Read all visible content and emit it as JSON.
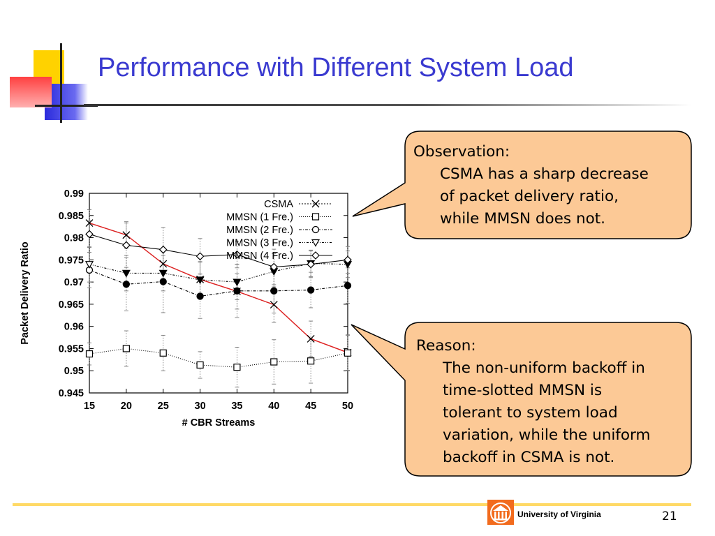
{
  "slide": {
    "title": "Performance with Different System Load",
    "page_number": "21",
    "institution": "University of Virginia"
  },
  "callouts": [
    {
      "heading": "Observation:",
      "lines": [
        "CSMA has a sharp decrease",
        "of packet delivery ratio,",
        "while MMSN does not."
      ]
    },
    {
      "heading": "Reason:",
      "lines": [
        "The non-uniform backoff in",
        "time-slotted MMSN is",
        "tolerant to system load",
        "variation, while the uniform",
        "backoff in CSMA is not."
      ]
    }
  ],
  "colors": {
    "title": "#3a3ad0",
    "callout_fill": "#fcc996",
    "accent_rule": "#ffd966",
    "csma_overlay": "#e02020"
  },
  "chart_data": {
    "type": "line",
    "x": [
      15,
      20,
      25,
      30,
      35,
      40,
      45,
      50
    ],
    "xlabel": "# CBR Streams",
    "ylabel": "Packet Delivery Ratio",
    "xlim": [
      15,
      50
    ],
    "ylim": [
      0.945,
      0.99
    ],
    "xticks": [
      15,
      20,
      25,
      30,
      35,
      40,
      45,
      50
    ],
    "yticks": [
      0.945,
      0.95,
      0.955,
      0.96,
      0.965,
      0.97,
      0.975,
      0.98,
      0.985,
      0.99
    ],
    "ytick_labels": [
      "0.945",
      "0.95",
      "0.955",
      "0.96",
      "0.965",
      "0.97",
      "0.975",
      "0.98",
      "0.985",
      "0.99"
    ],
    "legend_position": "top-right",
    "grid": false,
    "error_bars": true,
    "series": [
      {
        "name": "CSMA",
        "marker": "x",
        "dash": "2,2",
        "values": [
          0.9833,
          0.9806,
          0.9741,
          0.9706,
          0.9679,
          0.9649,
          0.9572,
          0.9541
        ],
        "err": [
          0.003,
          0.003,
          0.0035,
          0.004,
          0.004,
          0.004,
          0.004,
          0.004
        ]
      },
      {
        "name": "MMSN (1 Fre.)",
        "marker": "square",
        "dash": "1,2",
        "values": [
          0.9538,
          0.955,
          0.954,
          0.9513,
          0.9508,
          0.952,
          0.9522,
          0.954
        ],
        "err": [
          0.0025,
          0.004,
          0.004,
          0.003,
          0.0045,
          0.005,
          0.005,
          0.004
        ]
      },
      {
        "name": "MMSN (2 Fre.)",
        "marker": "circle",
        "dash": "4,2,1,2",
        "values": [
          0.9727,
          0.9695,
          0.9701,
          0.9668,
          0.968,
          0.968,
          0.9682,
          0.9692
        ],
        "err": [
          0.004,
          0.006,
          0.007,
          0.005,
          0.006,
          0.005,
          0.004,
          0.004
        ]
      },
      {
        "name": "MMSN (3 Fre.)",
        "marker": "triangle-down",
        "dash": "3,2,1,2,1,2",
        "values": [
          0.974,
          0.972,
          0.972,
          0.9705,
          0.97,
          0.9724,
          0.9742,
          0.974
        ],
        "err": [
          0.004,
          0.004,
          0.004,
          0.004,
          0.004,
          0.004,
          0.003,
          0.003
        ]
      },
      {
        "name": "MMSN (4 Fre.)",
        "marker": "diamond",
        "dash": "",
        "values": [
          0.9808,
          0.9783,
          0.9773,
          0.9758,
          0.9762,
          0.9734,
          0.974,
          0.975
        ],
        "err": [
          0.003,
          0.005,
          0.005,
          0.004,
          0.003,
          0.004,
          0.003,
          0.003
        ]
      }
    ]
  }
}
